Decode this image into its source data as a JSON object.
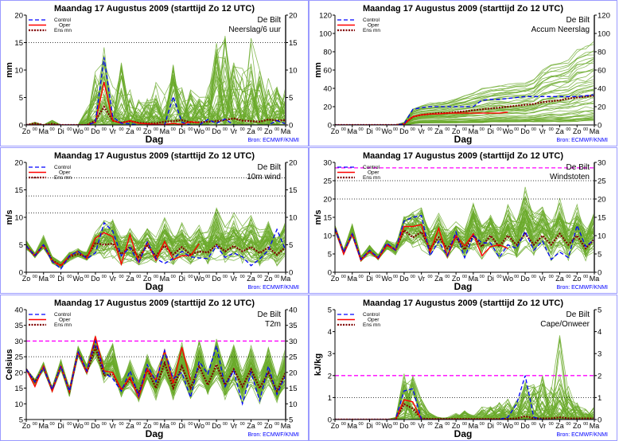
{
  "common": {
    "title": "Maandag   17 Augustus  2009  (starttijd  Zo 12 UTC)",
    "location": "De Bilt",
    "xlabel": "Dag",
    "source": "Bron: ECMWF/KNMI",
    "legend": [
      "Control",
      "Oper",
      "Ens mn"
    ],
    "day_labels": [
      "Zo",
      "Ma",
      "Di",
      "Wo",
      "Do",
      "Vr",
      "Za",
      "Zo",
      "Ma",
      "Di",
      "Wo",
      "Do",
      "Vr",
      "Za",
      "Zo",
      "Ma"
    ],
    "midnight_label": "00",
    "colors": {
      "control": "#0000ff",
      "oper": "#ff0000",
      "ens_mean": "#800000",
      "members": "#6aaa2a",
      "threshold": "#ff00ff",
      "border": "#9a9aff",
      "source": "#0000ff"
    }
  },
  "chart_data": [
    {
      "type": "line",
      "param": "Neerslag/6 uur",
      "ylabel": "mm",
      "ylim": [
        0,
        20
      ],
      "yticks": [
        0,
        5,
        10,
        15,
        20
      ],
      "hlines": [
        {
          "value": 15,
          "style": "dotted"
        }
      ],
      "control": [
        0,
        0,
        0,
        0,
        0,
        0,
        0,
        0,
        0.5,
        12.3,
        1.5,
        0.3,
        0.2,
        0,
        0,
        0,
        0,
        5.2,
        0.5,
        0,
        0,
        1,
        0.3,
        1.1,
        0,
        0,
        0,
        0,
        0,
        0.8,
        0.2
      ],
      "oper": [
        0,
        0,
        0,
        0,
        0,
        0,
        0,
        0,
        0.5,
        7.8,
        0.8,
        0.3,
        0.8,
        0.3,
        0.2,
        0.1,
        0.1,
        0.3,
        0.1,
        0.6,
        0.4
      ],
      "ens_mean": [
        0,
        0.3,
        0,
        0.2,
        0,
        0,
        0,
        0,
        0.8,
        3.3,
        0.8,
        0.4,
        0.7,
        0.4,
        0.3,
        0.3,
        0.6,
        0.7,
        0.9,
        0.5,
        0.5,
        0.6,
        0.7,
        0.9,
        1.2,
        0.8,
        0.7,
        0.6,
        1.0,
        0.8,
        0.9
      ],
      "ens_min": [
        0,
        0,
        0,
        0,
        0,
        0,
        0,
        0,
        0,
        0,
        0,
        0,
        0,
        0,
        0,
        0,
        0,
        0,
        0,
        0,
        0,
        0,
        0,
        0,
        0,
        0,
        0,
        0,
        0,
        0,
        0
      ],
      "ens_max": [
        0,
        0.5,
        0,
        0.9,
        0,
        0,
        0,
        3,
        10,
        16,
        7,
        12,
        7,
        5,
        5,
        8,
        6,
        11,
        7,
        7,
        6,
        7,
        15,
        17,
        12,
        12,
        16,
        11,
        9,
        7,
        7
      ]
    },
    {
      "type": "line",
      "param": "Accum Neerslag",
      "ylabel": "mm",
      "ylim": [
        0,
        120
      ],
      "yticks": [
        0,
        20,
        40,
        60,
        80,
        100,
        120
      ],
      "hlines": [],
      "control": [
        0,
        0,
        0,
        0,
        0,
        0,
        0,
        0,
        1,
        17,
        19,
        20,
        20,
        20,
        20,
        20,
        20,
        27,
        28,
        28,
        29,
        30,
        31,
        31,
        31,
        31,
        31,
        31,
        31,
        32,
        33
      ],
      "oper": [
        0,
        0,
        0,
        0,
        0,
        0,
        0,
        0,
        1,
        9,
        11,
        12,
        12,
        13,
        13,
        13,
        13,
        13,
        13,
        13,
        14
      ],
      "ens_mean": [
        0,
        0,
        0,
        0,
        0,
        0,
        0,
        0,
        1,
        9,
        11,
        12,
        13,
        13,
        14,
        15,
        16,
        17,
        18,
        19,
        20,
        21,
        22,
        23,
        25,
        26,
        27,
        29,
        30,
        31,
        32
      ],
      "ens_min": [
        0,
        0,
        0,
        0,
        0,
        0,
        0,
        0,
        0,
        1,
        2,
        2,
        2,
        2,
        2,
        2,
        2,
        2,
        3,
        3,
        3,
        3,
        3,
        3,
        3,
        3,
        3,
        3,
        3,
        4,
        4
      ],
      "ens_max": [
        0,
        0,
        0,
        0,
        0,
        0,
        0,
        0,
        3,
        18,
        22,
        24,
        25,
        26,
        30,
        33,
        36,
        40,
        42,
        44,
        45,
        46,
        47,
        50,
        62,
        68,
        70,
        72,
        85,
        88,
        93
      ]
    },
    {
      "type": "line",
      "param": "10m wind",
      "ylabel": "m/s",
      "ylim": [
        0,
        20
      ],
      "yticks": [
        0,
        5,
        10,
        15,
        20
      ],
      "hlines": [
        {
          "value": 10.8,
          "style": "dotted"
        },
        {
          "value": 13.9,
          "style": "dotted"
        },
        {
          "value": 17.2,
          "style": "dotted"
        }
      ],
      "control": [
        4.8,
        3,
        5,
        2,
        0.6,
        3,
        3.8,
        2.5,
        3.5,
        9,
        7.5,
        3,
        4.5,
        1.7,
        5.5,
        2.5,
        1.6,
        2.5,
        3.8,
        2.8,
        2.6,
        2.5,
        4.8,
        2.7,
        3.5,
        2.8,
        1.2,
        2.4,
        4,
        7.8,
        4
      ],
      "oper": [
        4.8,
        3,
        5,
        2,
        1.2,
        3,
        3.8,
        2.5,
        6.2,
        7.2,
        6.5,
        1.5,
        6.8,
        1.8,
        5.5,
        2.2,
        5.6,
        2.3,
        3,
        3,
        5.2
      ],
      "ens_mean": [
        4.8,
        3,
        5,
        2.2,
        1.2,
        2.8,
        3.3,
        2.8,
        5.3,
        5,
        5.2,
        3.3,
        4.6,
        2.8,
        4.8,
        3,
        4.8,
        3.2,
        4.6,
        3.2,
        3.8,
        3.6,
        5,
        3.8,
        4.8,
        3.8,
        4.6,
        3.5,
        4.5,
        3.2,
        4.6
      ],
      "ens_min": [
        4,
        2.5,
        4,
        1.5,
        0.6,
        2,
        2.5,
        2,
        3,
        2,
        2,
        1,
        1.5,
        0.8,
        1.5,
        1,
        1.5,
        1,
        1.5,
        0.8,
        1,
        0.8,
        1.5,
        0.8,
        1.5,
        0.8,
        1,
        0.5,
        1.5,
        0.8,
        1.5
      ],
      "ens_max": [
        6,
        3.6,
        6.8,
        3,
        2,
        3.8,
        4.5,
        4,
        8,
        10.5,
        11,
        7,
        8.5,
        6.5,
        8.5,
        6.5,
        10.5,
        7.5,
        9.5,
        7,
        9.5,
        8,
        13,
        9,
        11,
        9,
        10.8,
        8,
        10,
        7,
        10
      ]
    },
    {
      "type": "line",
      "param": "Windstoten",
      "ylabel": "m/s",
      "ylim": [
        0,
        30
      ],
      "yticks": [
        0,
        5,
        10,
        15,
        20,
        25,
        30
      ],
      "hlines": [
        {
          "value": 28.5,
          "style": "threshold"
        },
        {
          "value": 25,
          "style": "dotted"
        },
        {
          "value": 20,
          "style": "dotted"
        }
      ],
      "control": [
        12,
        5.5,
        10.5,
        3.5,
        6,
        4,
        8,
        6,
        14,
        15,
        15.5,
        4.5,
        8.5,
        4.5,
        11,
        4,
        10,
        8,
        8,
        4,
        7.5,
        6.5,
        11.2,
        6,
        8.5,
        3.5,
        5.5,
        4,
        12.8,
        7,
        9
      ],
      "oper": [
        12,
        5,
        10.5,
        3.2,
        5.8,
        3.7,
        7.5,
        6,
        12.5,
        12.5,
        13,
        5.5,
        12,
        4.3,
        10,
        7.2,
        10.5,
        4.5,
        7,
        7.5,
        6.5
      ],
      "ens_mean": [
        12,
        5.3,
        10.5,
        3.5,
        5.8,
        3.8,
        7.5,
        6.2,
        11.5,
        9.5,
        11,
        6.5,
        9.5,
        6.5,
        9.5,
        6.2,
        10,
        7,
        10,
        7,
        10,
        7.5,
        10.5,
        7.5,
        10,
        7.5,
        10.5,
        7.5,
        10,
        6.5,
        9
      ],
      "ens_min": [
        11,
        4.5,
        9,
        2.8,
        4.5,
        3,
        6,
        4.5,
        7,
        6,
        6,
        3.5,
        5,
        3,
        5,
        3,
        5,
        3,
        5,
        3,
        4,
        2.5,
        5,
        3,
        5,
        3,
        5,
        2.5,
        4.5,
        2.5,
        4.5
      ],
      "ens_max": [
        13,
        6.5,
        13.5,
        4.5,
        7.5,
        5,
        9,
        8,
        16.5,
        18,
        18.5,
        12,
        16.5,
        12,
        15,
        12,
        20,
        14,
        18,
        13,
        19.5,
        15,
        24.5,
        17,
        20,
        15,
        21,
        15,
        19,
        13,
        18
      ]
    },
    {
      "type": "line",
      "param": "T2m",
      "ylabel": "Celsius",
      "ylim": [
        5,
        40
      ],
      "yticks": [
        5,
        10,
        15,
        20,
        25,
        30,
        35,
        40
      ],
      "hlines": [
        {
          "value": 30,
          "style": "threshold"
        },
        {
          "value": 25,
          "style": "dotted"
        }
      ],
      "control": [
        21,
        17,
        21.5,
        14.5,
        22,
        14,
        26.5,
        20.5,
        30,
        20,
        18,
        14,
        20.5,
        12.5,
        22.5,
        17,
        27,
        18,
        20,
        12,
        23.5,
        19.5,
        28.5,
        15.5,
        20.5,
        10,
        20,
        11,
        22,
        13,
        19
      ],
      "oper": [
        21,
        15.5,
        22,
        14,
        22,
        14,
        26.5,
        20,
        31.5,
        20.5,
        20,
        14.5,
        18.5,
        12,
        21,
        17.5,
        27,
        16.5,
        28,
        17.5
      ],
      "ens_mean": [
        21,
        17,
        21.5,
        14.5,
        22,
        14,
        26.5,
        20,
        28,
        19,
        19.5,
        14.5,
        18,
        13.5,
        21,
        15,
        23,
        15,
        22,
        15,
        22,
        16,
        22.5,
        16,
        21,
        15.5,
        21,
        15,
        20,
        14,
        20
      ],
      "ens_min": [
        20.5,
        16,
        20.5,
        13.5,
        20.5,
        12,
        25,
        19,
        24,
        16.5,
        17,
        12,
        14,
        10.5,
        16.5,
        10.5,
        17,
        10.5,
        16,
        10,
        15.5,
        11,
        16,
        11,
        15,
        10,
        14.5,
        9.5,
        15,
        9.5,
        14
      ],
      "ens_max": [
        21.5,
        18,
        23.5,
        15.5,
        24.5,
        15.5,
        28.5,
        22.5,
        33,
        24,
        30,
        18,
        24.5,
        17.5,
        26.5,
        21,
        30,
        21,
        31.5,
        21,
        32,
        22,
        33.5,
        22,
        30.5,
        21,
        29,
        20,
        29.5,
        19,
        29
      ]
    },
    {
      "type": "line",
      "param": "Cape/Onweer",
      "ylabel": "kJ/kg",
      "ylim": [
        0,
        5
      ],
      "yticks": [
        0,
        1,
        2,
        3,
        4,
        5
      ],
      "hlines": [
        {
          "value": 2,
          "style": "threshold"
        },
        {
          "value": 1,
          "style": "dotted"
        }
      ],
      "control": [
        0,
        0,
        0,
        0,
        0,
        0,
        0,
        0,
        1.3,
        1.4,
        0,
        0,
        0,
        0,
        0,
        0,
        0,
        0,
        0,
        0,
        0.1,
        0.7,
        2,
        0.1,
        0,
        0,
        0,
        0,
        0,
        0,
        0
      ],
      "oper": [
        0,
        0,
        0,
        0,
        0,
        0,
        0,
        0,
        0.9,
        0.8,
        0,
        0,
        0,
        0,
        0,
        0,
        0,
        0,
        0,
        0,
        0
      ],
      "ens_mean": [
        0,
        0,
        0,
        0,
        0,
        0,
        0,
        0,
        0.7,
        0.5,
        0.05,
        0.02,
        0.02,
        0.02,
        0.02,
        0.02,
        0.02,
        0.02,
        0.02,
        0.02,
        0.03,
        0.05,
        0.15,
        0.05,
        0.05,
        0.05,
        0.1,
        0.05,
        0.05,
        0.05,
        0.05
      ],
      "ens_min": [
        0,
        0,
        0,
        0,
        0,
        0,
        0,
        0,
        0,
        0,
        0,
        0,
        0,
        0,
        0,
        0,
        0,
        0,
        0,
        0,
        0,
        0,
        0,
        0,
        0,
        0,
        0,
        0,
        0,
        0,
        0
      ],
      "ens_max": [
        0,
        0,
        0,
        0,
        0,
        0,
        0,
        0.1,
        2.1,
        2,
        1.4,
        0.3,
        0.1,
        0.1,
        0.3,
        0.4,
        0.2,
        0.6,
        0.7,
        0.8,
        1.1,
        0.9,
        1.8,
        1.6,
        2.1,
        1.5,
        3.9,
        1.6,
        0.8,
        0.5,
        0.6
      ]
    }
  ]
}
